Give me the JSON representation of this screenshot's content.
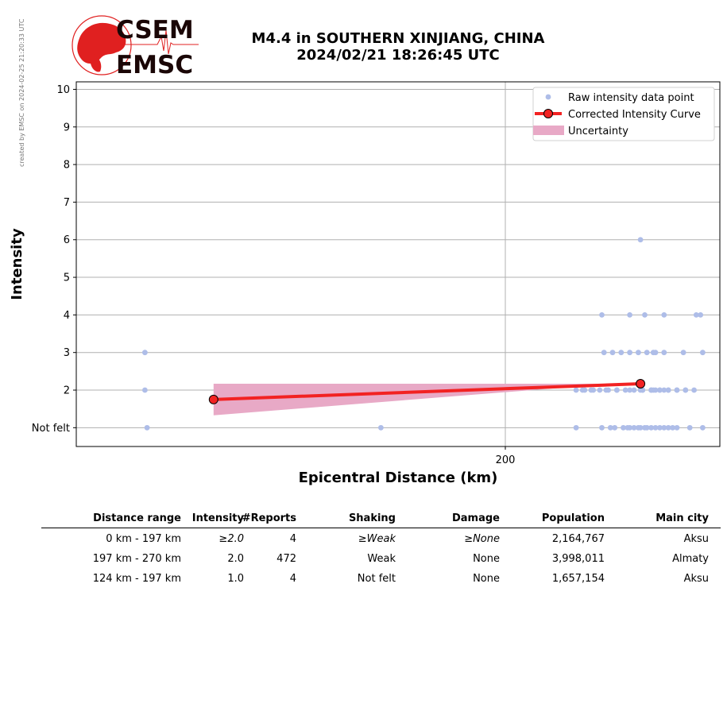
{
  "side_note": "created by EMSC on 2024-02-25 21:20:33 UTC",
  "logo": {
    "top_text": "CSEM",
    "bottom_text": "EMSC"
  },
  "title": {
    "line1": "M4.4 in SOUTHERN XINJIANG, CHINA",
    "line2": "2024/02/21 18:26:45 UTC"
  },
  "chart_data": {
    "type": "scatter",
    "xlabel": "Epicentral Distance (km)",
    "ylabel": "Intensity",
    "x_ticks": [
      200
    ],
    "y_ticks": [
      1,
      2,
      3,
      4,
      5,
      6,
      7,
      8,
      9,
      10
    ],
    "y_tick_labels": [
      "Not felt",
      "2",
      "3",
      "4",
      "5",
      "6",
      "7",
      "8",
      "9",
      "10"
    ],
    "xlim": [
      0,
      300
    ],
    "ylim": [
      0.5,
      10.2
    ],
    "grid": true,
    "legend_position": "top-right",
    "legend": [
      "Raw intensity data point",
      "Corrected Intensity Curve",
      "Uncertainty"
    ],
    "colors": {
      "raw": "#aebde8",
      "curve": "#f22222",
      "uncertainty": "#e8a9c6",
      "marker_edge": "#000000"
    },
    "raw_points": {
      "x": [
        32,
        32,
        33,
        142,
        233,
        245,
        249,
        251,
        255,
        257,
        258,
        260,
        262,
        263,
        265,
        266,
        268,
        270,
        272,
        274,
        276,
        278,
        280,
        246,
        250,
        254,
        258,
        262,
        266,
        270,
        274,
        240,
        244,
        248,
        252,
        256,
        260,
        264,
        268,
        272,
        276,
        280,
        284,
        288,
        233,
        237,
        264,
        268,
        270,
        272,
        276,
        280,
        284,
        286,
        292,
        236,
        241,
        247,
        252,
        258,
        263,
        269,
        274,
        269,
        283,
        292,
        263,
        245,
        258,
        265,
        274,
        289,
        291
      ],
      "y": [
        3,
        2,
        1,
        1,
        1,
        1,
        1,
        1,
        1,
        1,
        1,
        1,
        1,
        1,
        1,
        1,
        1,
        1,
        1,
        1,
        1,
        1,
        1,
        3,
        3,
        3,
        3,
        3,
        3,
        3,
        3,
        2,
        2,
        2,
        2,
        2,
        2,
        2,
        2,
        2,
        2,
        2,
        2,
        2,
        2,
        2,
        2,
        2,
        2,
        2,
        2,
        2,
        2,
        1,
        1,
        2,
        2,
        2,
        2,
        2,
        2,
        2,
        2,
        3,
        3,
        3,
        6,
        4,
        4,
        4,
        4,
        4,
        4
      ]
    },
    "curve": {
      "x": [
        64,
        263
      ],
      "y": [
        1.75,
        2.17
      ]
    },
    "uncertainty": {
      "x": [
        64,
        250
      ],
      "upper": [
        2.17,
        2.17
      ],
      "lower": [
        1.33,
        2.17
      ]
    }
  },
  "table": {
    "headers": [
      "Distance range",
      "Intensity",
      "#Reports",
      "Shaking",
      "Damage",
      "Population",
      "Main city"
    ],
    "rows": [
      [
        "0 km -  197 km",
        "≥2.0",
        "4",
        "≥Weak",
        "≥None",
        "2,164,767",
        "Aksu"
      ],
      [
        "197 km -  270 km",
        "2.0",
        "472",
        "Weak",
        "None",
        "3,998,011",
        "Almaty"
      ],
      [
        "124 km -  197 km",
        "1.0",
        "4",
        "Not felt",
        "None",
        "1,657,154",
        "Aksu"
      ]
    ]
  }
}
